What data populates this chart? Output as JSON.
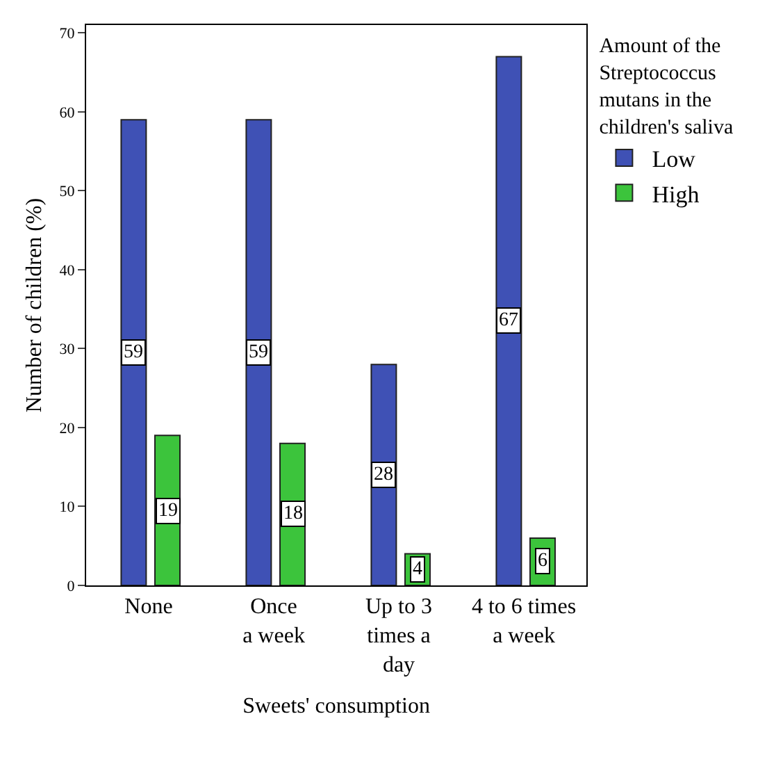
{
  "chart_data": {
    "type": "bar",
    "xlabel": "Sweets' consumption",
    "ylabel": "Number of children (%)",
    "legend_title": "Amount of the\nStreptococcus\nmutans in the\nchildren's saliva",
    "categories": [
      "None",
      "Once\na week",
      "Up to 3\ntimes a\nday",
      "4 to 6 times\na week"
    ],
    "series": [
      {
        "name": "Low",
        "color": "#3f51b5",
        "values": [
          59,
          59,
          28,
          67
        ]
      },
      {
        "name": "High",
        "color": "#3cc43c",
        "values": [
          19,
          18,
          4,
          6
        ]
      }
    ],
    "ylim": [
      0,
      71
    ],
    "yticks": [
      0,
      10,
      20,
      30,
      40,
      50,
      60,
      70
    ],
    "grid": false,
    "legend": "top right",
    "data_labels": true
  }
}
